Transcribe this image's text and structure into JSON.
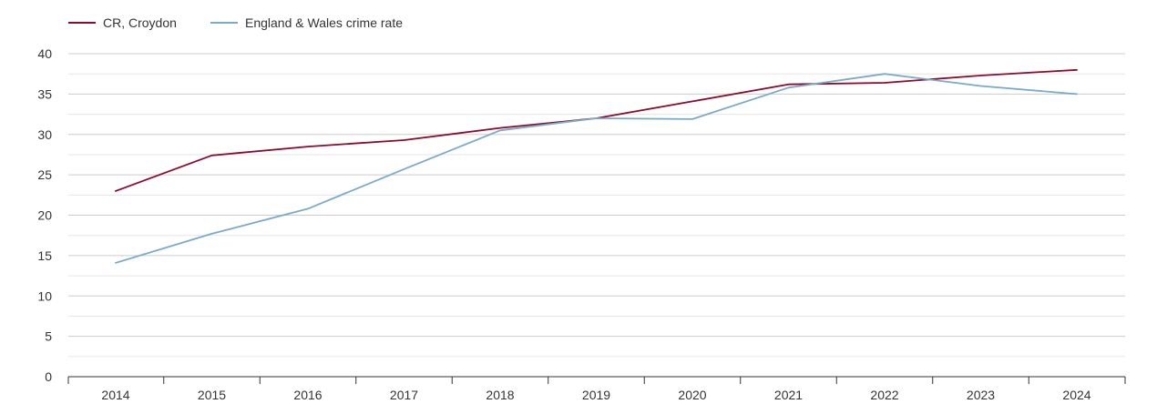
{
  "chart_data": {
    "type": "line",
    "title": "",
    "xlabel": "",
    "ylabel": "",
    "legend_position": "top-left",
    "grid": true,
    "ylim": [
      0,
      40
    ],
    "yticks": [
      0,
      5,
      10,
      15,
      20,
      25,
      30,
      35,
      40
    ],
    "categories": [
      "2014",
      "2015",
      "2016",
      "2017",
      "2018",
      "2019",
      "2020",
      "2021",
      "2022",
      "2023",
      "2024"
    ],
    "series": [
      {
        "name": "CR, Croydon",
        "color": "#8b0a2e",
        "values": [
          23.0,
          27.4,
          28.5,
          29.3,
          30.8,
          32.0,
          34.1,
          36.2,
          36.4,
          37.3,
          38.0
        ]
      },
      {
        "name": "England & Wales crime rate",
        "color": "#7aaac9",
        "values": [
          14.1,
          17.7,
          20.8,
          25.7,
          30.5,
          32.0,
          31.9,
          35.8,
          37.5,
          36.0,
          35.0
        ]
      }
    ]
  }
}
